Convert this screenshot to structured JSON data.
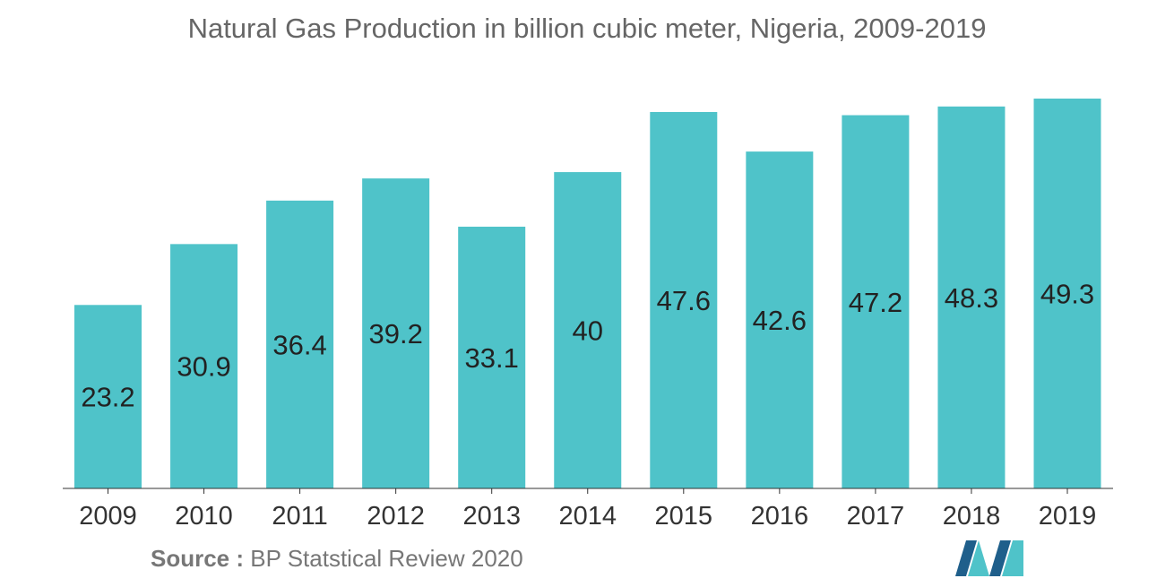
{
  "chart_data": {
    "type": "bar",
    "title": "Natural Gas Production in billion cubic meter, Nigeria, 2009-2019",
    "categories": [
      "2009",
      "2010",
      "2011",
      "2012",
      "2013",
      "2014",
      "2015",
      "2016",
      "2017",
      "2018",
      "2019"
    ],
    "values": [
      23.2,
      30.9,
      36.4,
      39.2,
      33.1,
      40,
      47.6,
      42.6,
      47.2,
      48.3,
      49.3
    ],
    "xlabel": "",
    "ylabel": "",
    "ylim": [
      0,
      49.3
    ],
    "grid": false,
    "legend": "none",
    "bar_color": "#4fc3c9",
    "data_labels": true
  },
  "source": {
    "label": "Source :",
    "text": "BP Statstical Review 2020"
  },
  "logo": {
    "icon": "mordor-intelligence-logo-icon",
    "colors": [
      "#1f5f8b",
      "#4fc3c9"
    ]
  }
}
